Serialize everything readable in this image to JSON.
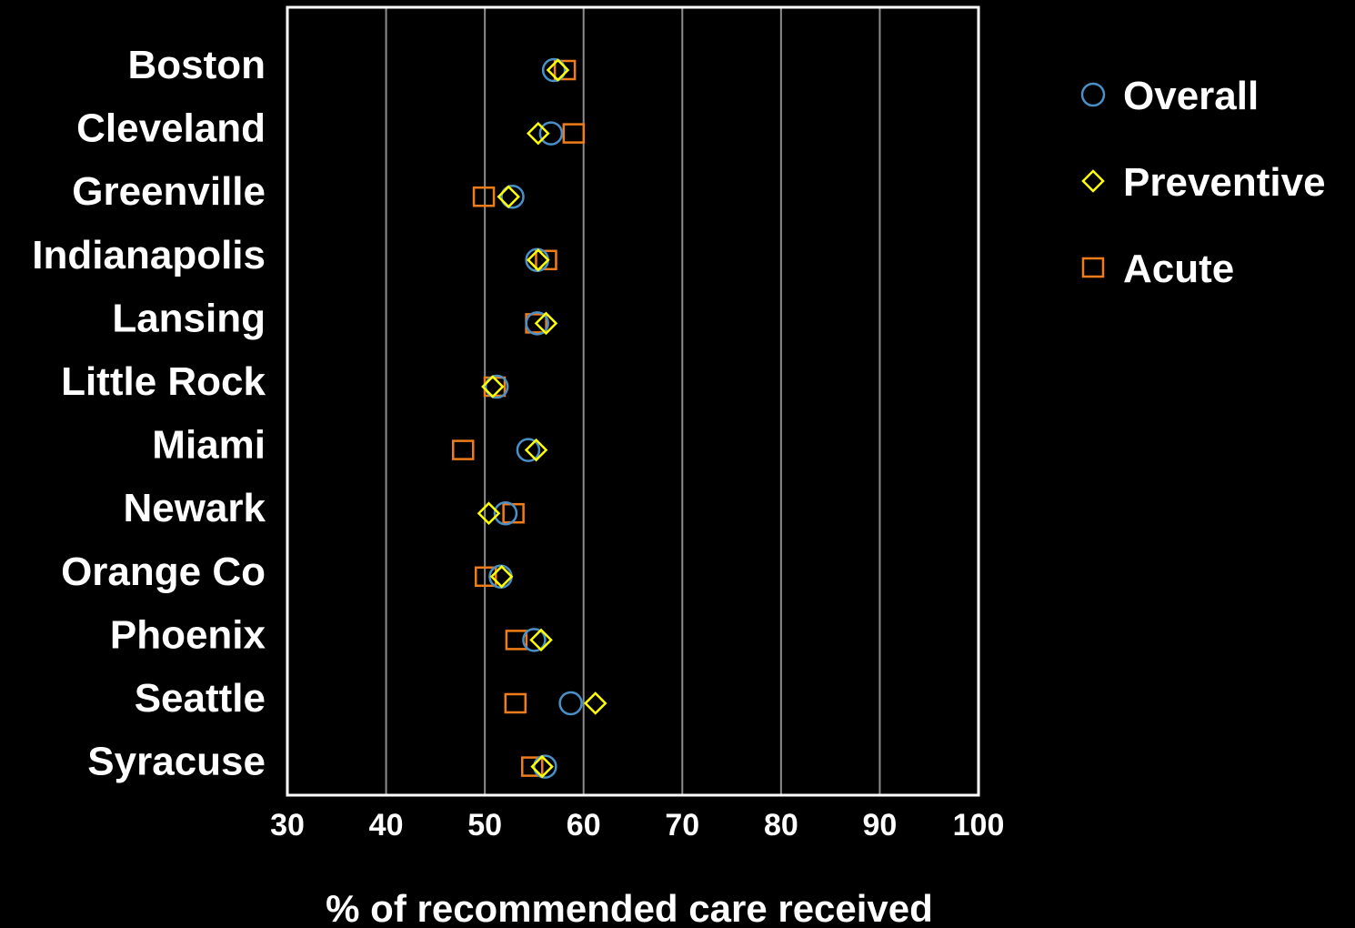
{
  "chart_data": {
    "type": "scatter",
    "xlabel": "% of recommended care received",
    "xlim": [
      30,
      100
    ],
    "xticks": [
      30,
      40,
      50,
      60,
      70,
      80,
      90,
      100
    ],
    "grid": true,
    "legend_position": "top-right",
    "categories": [
      "Boston",
      "Cleveland",
      "Greenville",
      "Indianapolis",
      "Lansing",
      "Little Rock",
      "Miami",
      "Newark",
      "Orange Co",
      "Phoenix",
      "Seattle",
      "Syracuse"
    ],
    "series": [
      {
        "name": "Overall",
        "marker": "circle",
        "color": "#4a90c8",
        "values": [
          57.0,
          56.7,
          52.8,
          55.3,
          55.3,
          51.2,
          54.4,
          52.1,
          51.6,
          55.0,
          58.7,
          56.1
        ]
      },
      {
        "name": "Preventive",
        "marker": "diamond",
        "color": "#ffff00",
        "values": [
          57.4,
          55.4,
          52.4,
          55.4,
          56.2,
          50.8,
          55.2,
          50.4,
          51.7,
          55.7,
          61.2,
          55.8
        ]
      },
      {
        "name": "Acute",
        "marker": "square",
        "color": "#f07c1a",
        "values": [
          58.1,
          59.0,
          49.9,
          56.2,
          55.2,
          51.0,
          47.8,
          52.9,
          50.1,
          53.2,
          53.1,
          54.8
        ]
      }
    ]
  }
}
